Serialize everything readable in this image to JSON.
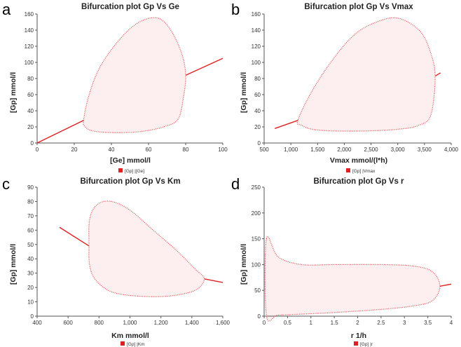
{
  "chart_data": [
    {
      "panel": "a",
      "type": "scatter",
      "title": "Bifurcation plot Gp Vs Ge",
      "xlabel": "[Ge] mmol/l",
      "ylabel": "[Gp] mmol/l",
      "xlim": [
        0,
        100
      ],
      "ylim": [
        0,
        160
      ],
      "xticks": [
        0,
        20,
        40,
        60,
        80,
        100
      ],
      "xtick_labels": [
        "0",
        "20",
        "40",
        "60",
        "80",
        "100"
      ],
      "yticks": [
        0,
        20,
        40,
        60,
        80,
        100,
        120,
        140,
        160
      ],
      "ytick_labels": [
        "0",
        "20",
        "40",
        "60",
        "80",
        "100",
        "120",
        "140",
        "160"
      ],
      "legend": "[Gp] |[Ge]",
      "legend_position": "bottom",
      "grid": false,
      "color": "#e02020",
      "stable_lines": [
        [
          [
            0,
            0
          ],
          [
            25,
            28
          ]
        ],
        [
          [
            80,
            84
          ],
          [
            100,
            105
          ]
        ]
      ],
      "loop": [
        [
          25,
          28
        ],
        [
          26,
          20
        ],
        [
          30,
          15
        ],
        [
          40,
          13
        ],
        [
          55,
          14
        ],
        [
          68,
          20
        ],
        [
          76,
          30
        ],
        [
          79,
          60
        ],
        [
          80,
          84
        ],
        [
          78,
          110
        ],
        [
          72,
          140
        ],
        [
          65,
          155
        ],
        [
          55,
          150
        ],
        [
          45,
          130
        ],
        [
          34,
          95
        ],
        [
          28,
          60
        ],
        [
          25,
          28
        ]
      ]
    },
    {
      "panel": "b",
      "type": "scatter",
      "title": "Bifurcation plot Gp Vs Vmax",
      "xlabel": "Vmax mmol/(l*h)",
      "ylabel": "[Gp] mmol/l",
      "xlim": [
        500,
        4000
      ],
      "ylim": [
        0,
        160
      ],
      "xticks": [
        500,
        1000,
        1500,
        2000,
        2500,
        3000,
        3500,
        4000
      ],
      "xtick_labels": [
        "500",
        "1,000",
        "1,500",
        "2,000",
        "2,500",
        "3,000",
        "3,500",
        "4,000"
      ],
      "yticks": [
        0,
        20,
        40,
        60,
        80,
        100,
        120,
        140,
        160
      ],
      "ytick_labels": [
        "0",
        "20",
        "40",
        "60",
        "80",
        "100",
        "120",
        "140",
        "160"
      ],
      "legend": "[Gp] |Vmax",
      "legend_position": "bottom",
      "grid": false,
      "color": "#e02020",
      "stable_lines": [
        [
          [
            700,
            18
          ],
          [
            1130,
            28
          ]
        ],
        [
          [
            3700,
            83
          ],
          [
            3800,
            87
          ]
        ]
      ],
      "loop": [
        [
          1130,
          28
        ],
        [
          1200,
          22
        ],
        [
          1400,
          17
        ],
        [
          1800,
          15
        ],
        [
          2400,
          15
        ],
        [
          3000,
          17
        ],
        [
          3400,
          22
        ],
        [
          3620,
          35
        ],
        [
          3700,
          83
        ],
        [
          3600,
          115
        ],
        [
          3400,
          140
        ],
        [
          3000,
          155
        ],
        [
          2600,
          150
        ],
        [
          2200,
          135
        ],
        [
          1800,
          105
        ],
        [
          1400,
          65
        ],
        [
          1130,
          28
        ]
      ]
    },
    {
      "panel": "c",
      "type": "scatter",
      "title": "Bifurcation plot Gp Vs Km",
      "xlabel": "Km mmol/l",
      "ylabel": "[Gp] mmol/l",
      "xlim": [
        400,
        1600
      ],
      "ylim": [
        0,
        90
      ],
      "xticks": [
        400,
        600,
        800,
        1000,
        1200,
        1400,
        1600
      ],
      "xtick_labels": [
        "400",
        "600",
        "800",
        "1,000",
        "1,200",
        "1,400",
        "1,600"
      ],
      "yticks": [
        0,
        10,
        20,
        30,
        40,
        50,
        60,
        70,
        80,
        90
      ],
      "ytick_labels": [
        "0",
        "10",
        "20",
        "30",
        "40",
        "50",
        "60",
        "70",
        "80",
        "90"
      ],
      "legend": "[Gp] |Km",
      "legend_position": "bottom",
      "grid": false,
      "color": "#e02020",
      "stable_lines": [
        [
          [
            545,
            62
          ],
          [
            735,
            49
          ]
        ],
        [
          [
            1480,
            26
          ],
          [
            1600,
            23.5
          ]
        ]
      ],
      "loop": [
        [
          735,
          49
        ],
        [
          740,
          68
        ],
        [
          790,
          78
        ],
        [
          880,
          80
        ],
        [
          1000,
          74
        ],
        [
          1150,
          60
        ],
        [
          1300,
          46
        ],
        [
          1420,
          33
        ],
        [
          1480,
          26
        ],
        [
          1420,
          18
        ],
        [
          1250,
          14
        ],
        [
          1050,
          14
        ],
        [
          880,
          17
        ],
        [
          780,
          25
        ],
        [
          740,
          35
        ],
        [
          735,
          49
        ]
      ]
    },
    {
      "panel": "d",
      "type": "scatter",
      "title": "Bifurcation plot Gp Vs r",
      "xlabel": "r 1/h",
      "ylabel": "[Gp] mmol/l",
      "xlim": [
        0,
        4
      ],
      "ylim": [
        0,
        250
      ],
      "xticks": [
        0,
        0.5,
        1,
        1.5,
        2,
        2.5,
        3,
        3.5,
        4
      ],
      "xtick_labels": [
        "0",
        "0.5",
        "1",
        "1.5",
        "2",
        "2.5",
        "3",
        "3.5",
        "4"
      ],
      "yticks": [
        0,
        50,
        100,
        150,
        200,
        250
      ],
      "ytick_labels": [
        "0",
        "50",
        "100",
        "150",
        "200",
        "250"
      ],
      "legend": "[Gp] |r",
      "legend_position": "bottom",
      "grid": false,
      "color": "#e02020",
      "stable_lines": [
        [
          [
            3.76,
            58
          ],
          [
            4,
            62
          ]
        ]
      ],
      "loop": [
        [
          0.05,
          150
        ],
        [
          0.3,
          115
        ],
        [
          0.8,
          100
        ],
        [
          1.5,
          100
        ],
        [
          2.5,
          100
        ],
        [
          3.2,
          97
        ],
        [
          3.6,
          86
        ],
        [
          3.76,
          58
        ],
        [
          3.6,
          30
        ],
        [
          3.2,
          20
        ],
        [
          2.5,
          13
        ],
        [
          1.5,
          7
        ],
        [
          0.8,
          4
        ],
        [
          0.3,
          2
        ],
        [
          0.05,
          1
        ],
        [
          0.05,
          150
        ]
      ]
    }
  ]
}
